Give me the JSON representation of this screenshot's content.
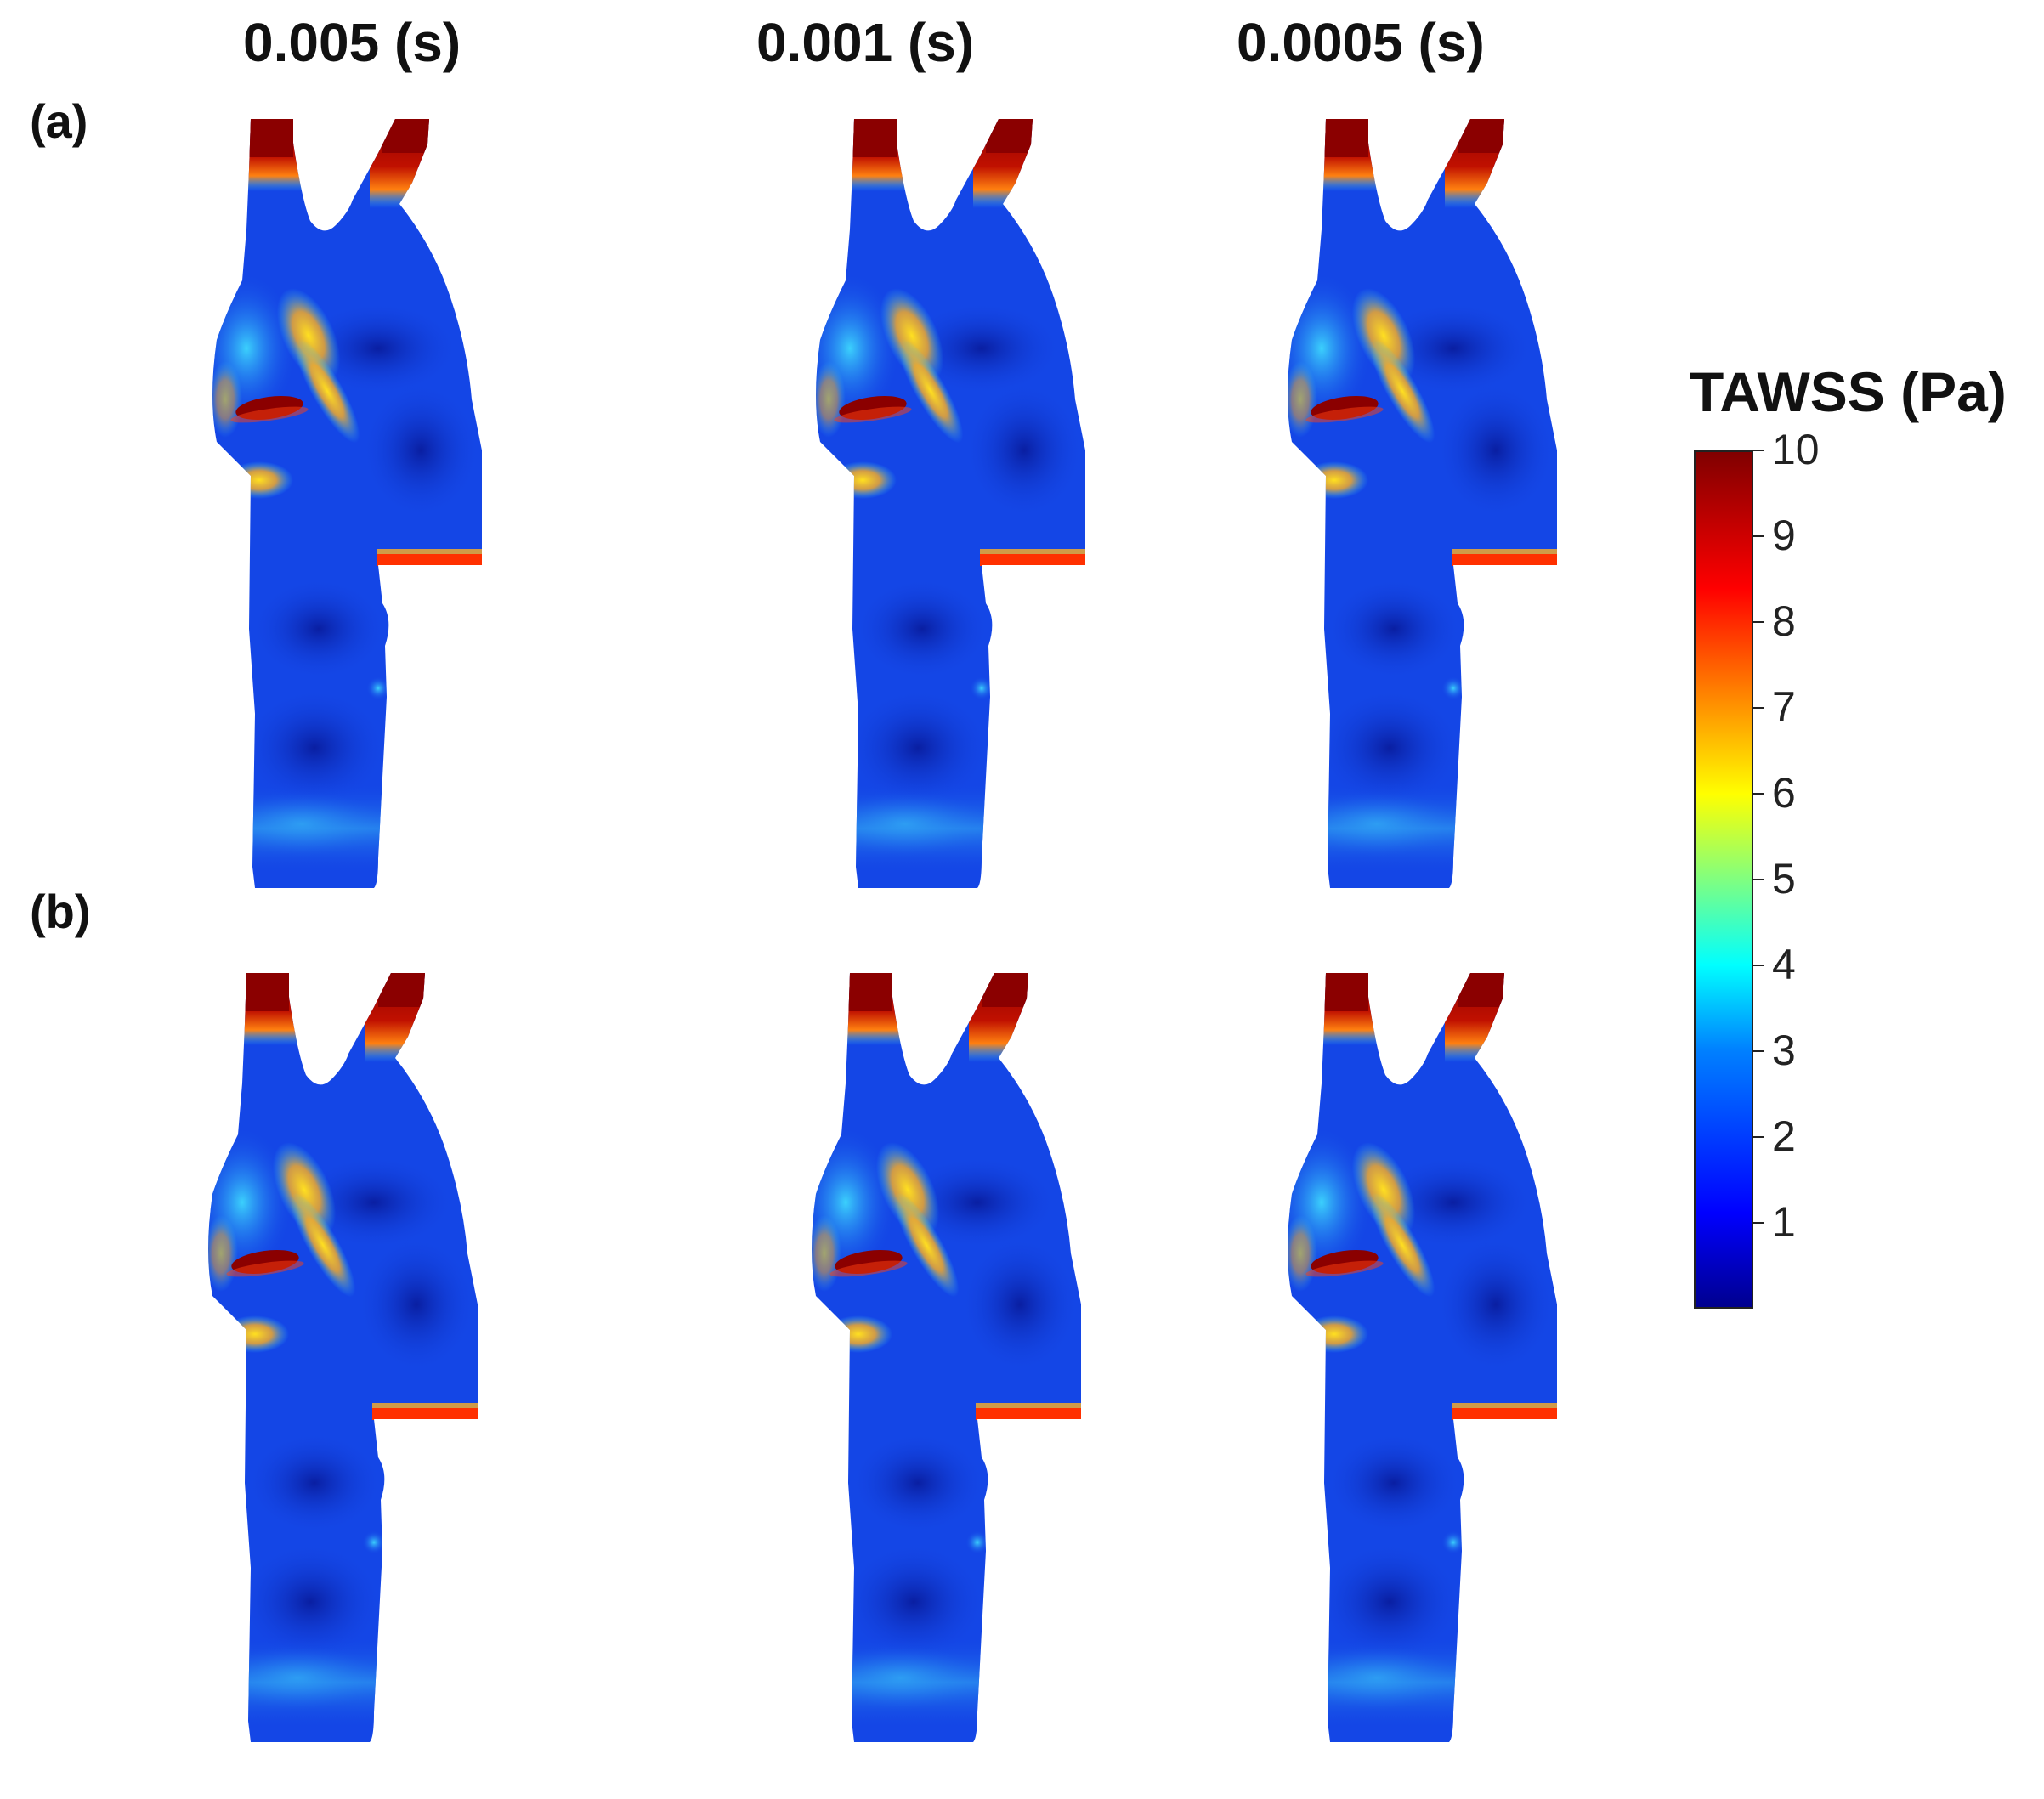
{
  "column_titles": [
    "0.005 (s)",
    "0.001 (s)",
    "0.0005 (s)"
  ],
  "row_labels": [
    "(a)",
    "(b)"
  ],
  "colorbar": {
    "title": "TAWSS (Pa)",
    "min": 0,
    "max": 10,
    "tick_labels": [
      "10",
      "9",
      "8",
      "7",
      "6",
      "5",
      "4",
      "3",
      "2",
      "1"
    ],
    "colormap": [
      "#00008f",
      "#0000ff",
      "#0080ff",
      "#00ffff",
      "#80ff80",
      "#ffff00",
      "#ff8000",
      "#ff0000",
      "#800000"
    ]
  },
  "colors": {
    "vessel_base": "#1446e6",
    "low_shear": "#0a1fb4",
    "high_shear": "#8b0000",
    "mid_shear": "#ff9a10",
    "moderate_shear": "#2fd8ff"
  }
}
